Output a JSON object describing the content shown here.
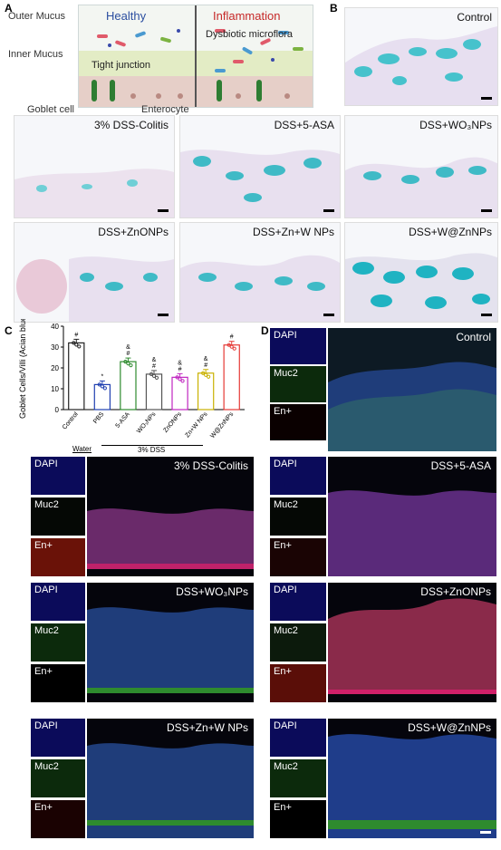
{
  "panels": {
    "a": "A",
    "b": "B",
    "c": "C",
    "d": "D"
  },
  "schematic": {
    "healthy": "Healthy",
    "inflammation": "Inflammation",
    "outer_mucus": "Outer Mucus",
    "inner_mucus": "Inner Mucus",
    "tight_junction": "Tight junction",
    "dysbiotic": "Dysbiotic microflora",
    "goblet": "Goblet cell",
    "enterocyte": "Enterocyte",
    "colors": {
      "healthy": "#2b4ea0",
      "inflammation": "#c62828"
    }
  },
  "histology": [
    {
      "label": "Control"
    },
    {
      "label": "3% DSS-Colitis"
    },
    {
      "label": "DSS+5-ASA"
    },
    {
      "label": "DSS+WO₃NPs"
    },
    {
      "label": "DSS+ZnONPs"
    },
    {
      "label": "DSS+Zn+W NPs"
    },
    {
      "label": "DSS+W@ZnNPs"
    }
  ],
  "chart_data": {
    "type": "bar",
    "ylabel": "Goblet Cells/Villi (Acian blue)",
    "ylim": [
      0,
      40
    ],
    "yticks": [
      "0",
      "10",
      "20",
      "30",
      "40"
    ],
    "categories": [
      "Control",
      "PBS",
      "5-ASA",
      "WO₃NPs",
      "ZnONPs",
      "Zn+W NPs",
      "W@ZnNPs"
    ],
    "values": [
      32,
      12,
      23,
      17,
      15.5,
      17.5,
      31
    ],
    "colors": [
      "#222222",
      "#1f3fb0",
      "#2e8b2e",
      "#555555",
      "#c026c0",
      "#c9b100",
      "#e53935"
    ],
    "annotations": [
      "#",
      "*",
      "&\n#",
      "&\n#",
      "&\n#",
      "&\n#",
      "#"
    ],
    "group_labels": {
      "water": "Water",
      "dss": "3% DSS"
    }
  },
  "fluorescence": {
    "channels": [
      "DAPI",
      "Muc2",
      "En+"
    ],
    "panels": [
      {
        "label": "Control"
      },
      {
        "label": "3% DSS-Colitis"
      },
      {
        "label": "DSS+5-ASA"
      },
      {
        "label": "DSS+WO₃NPs"
      },
      {
        "label": "DSS+ZnONPs"
      },
      {
        "label": "DSS+Zn+W NPs"
      },
      {
        "label": "DSS+W@ZnNPs"
      }
    ]
  }
}
